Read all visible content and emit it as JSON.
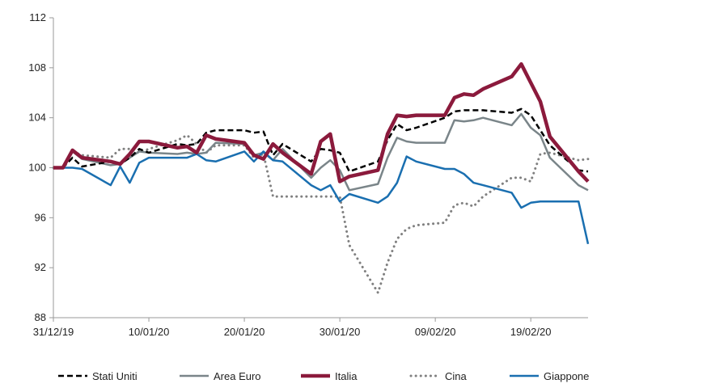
{
  "chart_data": {
    "type": "line",
    "title": "",
    "xlabel": "",
    "ylabel": "",
    "ylim": [
      88,
      112
    ],
    "yticks": [
      88,
      92,
      96,
      100,
      104,
      108,
      112
    ],
    "xtick_labels": [
      "31/12/19",
      "10/01/20",
      "20/01/20",
      "30/01/20",
      "09/02/20",
      "19/02/20"
    ],
    "x_range": [
      "31/12/19",
      "25/02/20"
    ],
    "grid": false,
    "legend_position": "bottom",
    "series": [
      {
        "name": "Stati Uniti",
        "color": "#000000",
        "style": "dashed",
        "points": [
          [
            "31/12/19",
            100.0
          ],
          [
            "01/01/20",
            100.0
          ],
          [
            "02/01/20",
            100.8
          ],
          [
            "03/01/20",
            100.1
          ],
          [
            "06/01/20",
            100.5
          ],
          [
            "07/01/20",
            100.3
          ],
          [
            "08/01/20",
            100.8
          ],
          [
            "09/01/20",
            101.5
          ],
          [
            "10/01/20",
            101.2
          ],
          [
            "13/01/20",
            101.9
          ],
          [
            "14/01/20",
            101.8
          ],
          [
            "15/01/20",
            101.9
          ],
          [
            "16/01/20",
            102.8
          ],
          [
            "17/01/20",
            103.0
          ],
          [
            "20/01/20",
            103.0
          ],
          [
            "21/01/20",
            102.8
          ],
          [
            "22/01/20",
            102.9
          ],
          [
            "23/01/20",
            101.0
          ],
          [
            "24/01/20",
            101.9
          ],
          [
            "27/01/20",
            100.5
          ],
          [
            "28/01/20",
            101.5
          ],
          [
            "29/01/20",
            101.4
          ],
          [
            "30/01/20",
            101.2
          ],
          [
            "31/01/20",
            99.7
          ],
          [
            "03/02/20",
            100.5
          ],
          [
            "04/02/20",
            102.2
          ],
          [
            "05/02/20",
            103.5
          ],
          [
            "06/02/20",
            103.0
          ],
          [
            "07/02/20",
            103.2
          ],
          [
            "10/02/20",
            104.0
          ],
          [
            "11/02/20",
            104.5
          ],
          [
            "12/02/20",
            104.6
          ],
          [
            "13/02/20",
            104.6
          ],
          [
            "14/02/20",
            104.6
          ],
          [
            "17/02/20",
            104.4
          ],
          [
            "18/02/20",
            104.7
          ],
          [
            "19/02/20",
            104.2
          ],
          [
            "20/02/20",
            103.0
          ],
          [
            "21/02/20",
            101.8
          ],
          [
            "24/02/20",
            99.8
          ],
          [
            "25/02/20",
            99.7
          ]
        ]
      },
      {
        "name": "Area Euro",
        "color": "#7a8589",
        "style": "solid",
        "points": [
          [
            "31/12/19",
            100.0
          ],
          [
            "01/01/20",
            100.0
          ],
          [
            "02/01/20",
            101.3
          ],
          [
            "03/01/20",
            100.7
          ],
          [
            "06/01/20",
            100.2
          ],
          [
            "07/01/20",
            100.3
          ],
          [
            "08/01/20",
            100.8
          ],
          [
            "09/01/20",
            101.3
          ],
          [
            "10/01/20",
            101.2
          ],
          [
            "13/01/20",
            101.1
          ],
          [
            "14/01/20",
            101.2
          ],
          [
            "15/01/20",
            101.1
          ],
          [
            "16/01/20",
            101.2
          ],
          [
            "17/01/20",
            102.0
          ],
          [
            "20/01/20",
            101.9
          ],
          [
            "21/01/20",
            101.0
          ],
          [
            "22/01/20",
            101.2
          ],
          [
            "23/01/20",
            100.6
          ],
          [
            "24/01/20",
            101.5
          ],
          [
            "27/01/20",
            99.2
          ],
          [
            "28/01/20",
            100.0
          ],
          [
            "29/01/20",
            100.6
          ],
          [
            "30/01/20",
            99.8
          ],
          [
            "31/01/20",
            98.2
          ],
          [
            "03/02/20",
            98.7
          ],
          [
            "04/02/20",
            100.8
          ],
          [
            "05/02/20",
            102.4
          ],
          [
            "06/02/20",
            102.1
          ],
          [
            "07/02/20",
            102.0
          ],
          [
            "10/02/20",
            102.0
          ],
          [
            "11/02/20",
            103.8
          ],
          [
            "12/02/20",
            103.7
          ],
          [
            "13/02/20",
            103.8
          ],
          [
            "14/02/20",
            104.0
          ],
          [
            "17/02/20",
            103.4
          ],
          [
            "18/02/20",
            104.3
          ],
          [
            "19/02/20",
            103.2
          ],
          [
            "20/02/20",
            102.6
          ],
          [
            "21/02/20",
            100.8
          ],
          [
            "24/02/20",
            98.6
          ],
          [
            "25/02/20",
            98.2
          ]
        ]
      },
      {
        "name": "Italia",
        "color": "#8b1a3c",
        "style": "solid-thick",
        "points": [
          [
            "31/12/19",
            100.0
          ],
          [
            "01/01/20",
            100.0
          ],
          [
            "02/01/20",
            101.4
          ],
          [
            "03/01/20",
            100.8
          ],
          [
            "06/01/20",
            100.5
          ],
          [
            "07/01/20",
            100.3
          ],
          [
            "08/01/20",
            101.1
          ],
          [
            "09/01/20",
            102.1
          ],
          [
            "10/01/20",
            102.1
          ],
          [
            "13/01/20",
            101.6
          ],
          [
            "14/01/20",
            101.7
          ],
          [
            "15/01/20",
            101.2
          ],
          [
            "16/01/20",
            102.6
          ],
          [
            "17/01/20",
            102.3
          ],
          [
            "20/01/20",
            102.0
          ],
          [
            "21/01/20",
            101.0
          ],
          [
            "22/01/20",
            100.7
          ],
          [
            "23/01/20",
            101.9
          ],
          [
            "24/01/20",
            101.2
          ],
          [
            "27/01/20",
            99.5
          ],
          [
            "28/01/20",
            102.1
          ],
          [
            "29/01/20",
            102.7
          ],
          [
            "30/01/20",
            98.9
          ],
          [
            "31/01/20",
            99.3
          ],
          [
            "03/02/20",
            99.8
          ],
          [
            "04/02/20",
            102.7
          ],
          [
            "05/02/20",
            104.2
          ],
          [
            "06/02/20",
            104.1
          ],
          [
            "07/02/20",
            104.2
          ],
          [
            "10/02/20",
            104.2
          ],
          [
            "11/02/20",
            105.6
          ],
          [
            "12/02/20",
            105.9
          ],
          [
            "13/02/20",
            105.8
          ],
          [
            "14/02/20",
            106.3
          ],
          [
            "17/02/20",
            107.3
          ],
          [
            "18/02/20",
            108.3
          ],
          [
            "19/02/20",
            106.8
          ],
          [
            "20/02/20",
            105.3
          ],
          [
            "21/02/20",
            102.5
          ],
          [
            "24/02/20",
            99.7
          ],
          [
            "25/02/20",
            98.9
          ]
        ]
      },
      {
        "name": "Cina",
        "color": "#808080",
        "style": "dotted",
        "points": [
          [
            "31/12/19",
            100.0
          ],
          [
            "01/01/20",
            100.0
          ],
          [
            "02/01/20",
            101.3
          ],
          [
            "03/01/20",
            101.0
          ],
          [
            "06/01/20",
            100.8
          ],
          [
            "07/01/20",
            101.5
          ],
          [
            "08/01/20",
            101.5
          ],
          [
            "09/01/20",
            101.2
          ],
          [
            "10/01/20",
            101.5
          ],
          [
            "13/01/20",
            102.2
          ],
          [
            "14/01/20",
            102.6
          ],
          [
            "15/01/20",
            101.9
          ],
          [
            "16/01/20",
            101.2
          ],
          [
            "17/01/20",
            101.8
          ],
          [
            "20/01/20",
            101.8
          ],
          [
            "21/01/20",
            100.8
          ],
          [
            "22/01/20",
            101.1
          ],
          [
            "23/01/20",
            97.7
          ],
          [
            "24/01/20",
            97.7
          ],
          [
            "27/01/20",
            97.7
          ],
          [
            "28/01/20",
            97.7
          ],
          [
            "29/01/20",
            97.7
          ],
          [
            "30/01/20",
            97.7
          ],
          [
            "31/01/20",
            93.8
          ],
          [
            "03/02/20",
            90.0
          ],
          [
            "04/02/20",
            92.4
          ],
          [
            "05/02/20",
            94.3
          ],
          [
            "06/02/20",
            95.1
          ],
          [
            "07/02/20",
            95.4
          ],
          [
            "10/02/20",
            95.6
          ],
          [
            "11/02/20",
            97.0
          ],
          [
            "12/02/20",
            97.2
          ],
          [
            "13/02/20",
            96.9
          ],
          [
            "14/02/20",
            97.7
          ],
          [
            "17/02/20",
            99.2
          ],
          [
            "18/02/20",
            99.2
          ],
          [
            "19/02/20",
            98.9
          ],
          [
            "20/02/20",
            101.1
          ],
          [
            "21/02/20",
            101.2
          ],
          [
            "24/02/20",
            100.6
          ],
          [
            "25/02/20",
            100.7
          ]
        ]
      },
      {
        "name": "Giappone",
        "color": "#1a6fb0",
        "style": "solid",
        "points": [
          [
            "31/12/19",
            100.0
          ],
          [
            "01/01/20",
            100.0
          ],
          [
            "02/01/20",
            100.0
          ],
          [
            "03/01/20",
            99.9
          ],
          [
            "06/01/20",
            98.6
          ],
          [
            "07/01/20",
            100.1
          ],
          [
            "08/01/20",
            98.8
          ],
          [
            "09/01/20",
            100.4
          ],
          [
            "10/01/20",
            100.8
          ],
          [
            "13/01/20",
            100.8
          ],
          [
            "14/01/20",
            100.8
          ],
          [
            "15/01/20",
            101.1
          ],
          [
            "16/01/20",
            100.6
          ],
          [
            "17/01/20",
            100.5
          ],
          [
            "20/01/20",
            101.3
          ],
          [
            "21/01/20",
            100.5
          ],
          [
            "22/01/20",
            101.3
          ],
          [
            "23/01/20",
            100.6
          ],
          [
            "24/01/20",
            100.5
          ],
          [
            "27/01/20",
            98.6
          ],
          [
            "28/01/20",
            98.2
          ],
          [
            "29/01/20",
            98.6
          ],
          [
            "30/01/20",
            97.3
          ],
          [
            "31/01/20",
            97.9
          ],
          [
            "03/02/20",
            97.2
          ],
          [
            "04/02/20",
            97.7
          ],
          [
            "05/02/20",
            98.8
          ],
          [
            "06/02/20",
            100.9
          ],
          [
            "07/02/20",
            100.5
          ],
          [
            "10/02/20",
            99.9
          ],
          [
            "11/02/20",
            99.9
          ],
          [
            "12/02/20",
            99.5
          ],
          [
            "13/02/20",
            98.8
          ],
          [
            "14/02/20",
            98.6
          ],
          [
            "17/02/20",
            98.0
          ],
          [
            "18/02/20",
            96.8
          ],
          [
            "19/02/20",
            97.2
          ],
          [
            "20/02/20",
            97.3
          ],
          [
            "21/02/20",
            97.3
          ],
          [
            "24/02/20",
            97.3
          ],
          [
            "25/02/20",
            93.9
          ]
        ]
      }
    ]
  }
}
